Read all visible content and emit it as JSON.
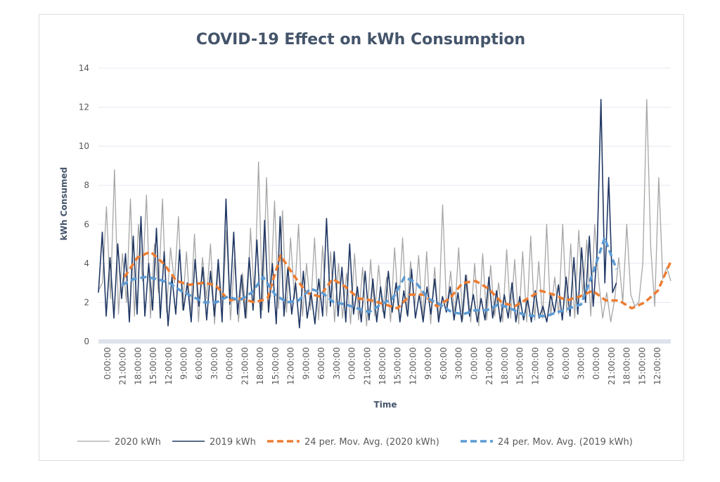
{
  "chart_data": {
    "type": "line",
    "title": "COVID-19 Effect on kWh Consumption",
    "xlabel": "Time",
    "ylabel": "kWh Consumed",
    "ylim": [
      0,
      14
    ],
    "yticks": [
      0,
      2,
      4,
      6,
      8,
      10,
      12,
      14
    ],
    "grid": true,
    "legend_position": "bottom",
    "x_tick_labels": [
      "0:00:00",
      "21:00:00",
      "18:00:00",
      "15:00:00",
      "12:00:00",
      "9:00:00",
      "6:00:00",
      "3:00:00",
      "0:00:00",
      "21:00:00",
      "18:00:00",
      "15:00:00",
      "12:00:00",
      "9:00:00",
      "6:00:00",
      "3:00:00",
      "0:00:00",
      "21:00:00",
      "18:00:00",
      "15:00:00",
      "12:00:00",
      "9:00:00",
      "6:00:00",
      "3:00:00",
      "0:00:00",
      "21:00:00",
      "18:00:00",
      "15:00:00",
      "12:00:00",
      "9:00:00",
      "6:00:00",
      "3:00:00",
      "0:00:00",
      "21:00:00",
      "18:00:00",
      "15:00:00",
      "12:00:00"
    ],
    "series": [
      {
        "name": "2020 kWh",
        "color": "#a6a6a6",
        "style": "solid",
        "values": [
          2.6,
          3.0,
          6.9,
          2.2,
          8.8,
          1.4,
          4.5,
          2.0,
          7.3,
          1.3,
          6.0,
          3.1,
          7.5,
          1.2,
          5.0,
          2.5,
          7.3,
          1.5,
          4.8,
          3.0,
          6.4,
          1.6,
          4.6,
          1.3,
          5.5,
          1.0,
          4.3,
          2.2,
          5.0,
          0.9,
          4.0,
          1.8,
          5.7,
          1.1,
          4.2,
          1.0,
          3.5,
          1.2,
          5.8,
          2.0,
          9.2,
          1.6,
          8.4,
          2.3,
          7.2,
          1.7,
          6.7,
          1.5,
          5.3,
          2.2,
          6.0,
          1.3,
          4.0,
          1.6,
          5.3,
          1.1,
          4.9,
          1.3,
          4.6,
          1.0,
          4.0,
          1.2,
          3.5,
          0.9,
          4.5,
          1.1,
          3.8,
          0.8,
          4.2,
          1.3,
          3.9,
          1.5,
          3.3,
          1.0,
          4.8,
          1.6,
          5.3,
          1.4,
          4.1,
          1.7,
          4.4,
          1.2,
          4.6,
          0.9,
          3.8,
          1.0,
          7.0,
          1.6,
          3.6,
          1.3,
          4.8,
          1.1,
          3.4,
          1.0,
          4.0,
          0.8,
          4.5,
          1.1,
          3.9,
          1.3,
          3.0,
          1.0,
          4.7,
          1.2,
          4.2,
          0.9,
          4.6,
          1.0,
          5.4,
          1.1,
          4.1,
          1.2,
          6.0,
          1.3,
          3.3,
          1.4,
          6.0,
          1.5,
          5.0,
          1.2,
          5.7,
          2.4,
          5.2,
          1.3,
          6.0,
          3.1,
          1.2,
          2.5,
          1.0,
          2.2,
          4.3,
          2.0,
          6.0,
          2.4,
          1.8,
          2.0,
          4.0,
          12.4,
          4.8,
          1.8,
          8.4,
          3.2,
          3.8,
          3.1
        ],
        "note": "Approximate hourly trace; individual points not labeled"
      },
      {
        "name": "2019 kWh",
        "color": "#203864",
        "style": "solid",
        "values": [
          2.5,
          5.6,
          1.3,
          4.3,
          1.2,
          5.0,
          2.2,
          4.5,
          1.0,
          5.4,
          1.4,
          6.4,
          1.3,
          4.0,
          1.6,
          5.8,
          1.2,
          4.6,
          0.8,
          3.3,
          1.4,
          4.7,
          1.6,
          3.0,
          1.0,
          4.2,
          1.8,
          3.8,
          1.1,
          3.6,
          1.3,
          4.2,
          1.0,
          7.3,
          1.9,
          5.6,
          1.4,
          3.4,
          1.2,
          4.3,
          1.6,
          5.2,
          1.2,
          6.2,
          1.5,
          4.0,
          0.9,
          6.4,
          1.3,
          3.8,
          1.4,
          3.0,
          0.7,
          3.6,
          1.2,
          2.5,
          0.9,
          3.2,
          1.3,
          6.3,
          1.8,
          4.6,
          1.3,
          3.8,
          1.0,
          5.0,
          1.4,
          2.8,
          1.0,
          3.6,
          1.1,
          3.2,
          1.0,
          2.8,
          1.2,
          3.6,
          1.5,
          3.0,
          1.0,
          2.6,
          1.3,
          3.7,
          1.2,
          2.4,
          1.0,
          2.8,
          1.4,
          3.2,
          1.0,
          2.3,
          1.5,
          2.8,
          1.1,
          2.5,
          1.0,
          3.4,
          1.3,
          2.4,
          1.0,
          2.2,
          1.1,
          3.3,
          1.2,
          2.6,
          1.0,
          2.4,
          1.2,
          3.0,
          1.0,
          2.3,
          1.1,
          2.2,
          1.0,
          2.6,
          1.2,
          1.8,
          1.0,
          2.4,
          1.5,
          2.9,
          1.1,
          3.3,
          1.3,
          4.3,
          1.4,
          4.8,
          2.0,
          5.4,
          1.8,
          4.6,
          12.4,
          3.0,
          8.4,
          2.5,
          3.0
        ],
        "note": "Approximate hourly trace; 2019 series ends before 2020 series"
      },
      {
        "name": "24 per. Mov. Avg. (2020 kWh)",
        "color": "#ed7d31",
        "style": "dashed",
        "values": [
          null,
          null,
          3.3,
          4.3,
          4.6,
          4.0,
          3.1,
          2.9,
          3.0,
          2.9,
          2.1,
          2.2,
          2.0,
          2.2,
          4.4,
          3.4,
          2.5,
          2.3,
          3.2,
          2.8,
          2.2,
          2.1,
          1.9,
          1.7,
          2.4,
          2.4,
          1.8,
          2.2,
          3.0,
          3.1,
          2.7,
          2.0,
          1.8,
          2.2,
          2.6,
          2.4,
          2.1,
          2.3,
          2.6,
          2.1,
          2.1,
          1.7,
          2.0,
          2.6,
          4.1
        ],
        "note": "Approximate trend, ~45 samples across the x-range"
      },
      {
        "name": "24 per. Mov. Avg. (2019 kWh)",
        "color": "#5b9bd5",
        "style": "dashed",
        "values": [
          null,
          null,
          2.9,
          3.2,
          3.3,
          3.2,
          3.0,
          2.6,
          2.3,
          2.0,
          2.0,
          2.3,
          2.1,
          2.5,
          3.3,
          2.4,
          2.0,
          2.1,
          2.7,
          2.5,
          2.0,
          1.9,
          1.7,
          1.5,
          1.9,
          2.2,
          3.3,
          3.0,
          2.2,
          1.9,
          1.5,
          1.4,
          1.6,
          1.6,
          1.9,
          1.7,
          1.4,
          1.3,
          1.3,
          1.5,
          1.7,
          1.9,
          3.5,
          5.3,
          3.7
        ],
        "note": "Approximate trend, ~45 samples; ends near 80% of x-range"
      }
    ]
  }
}
